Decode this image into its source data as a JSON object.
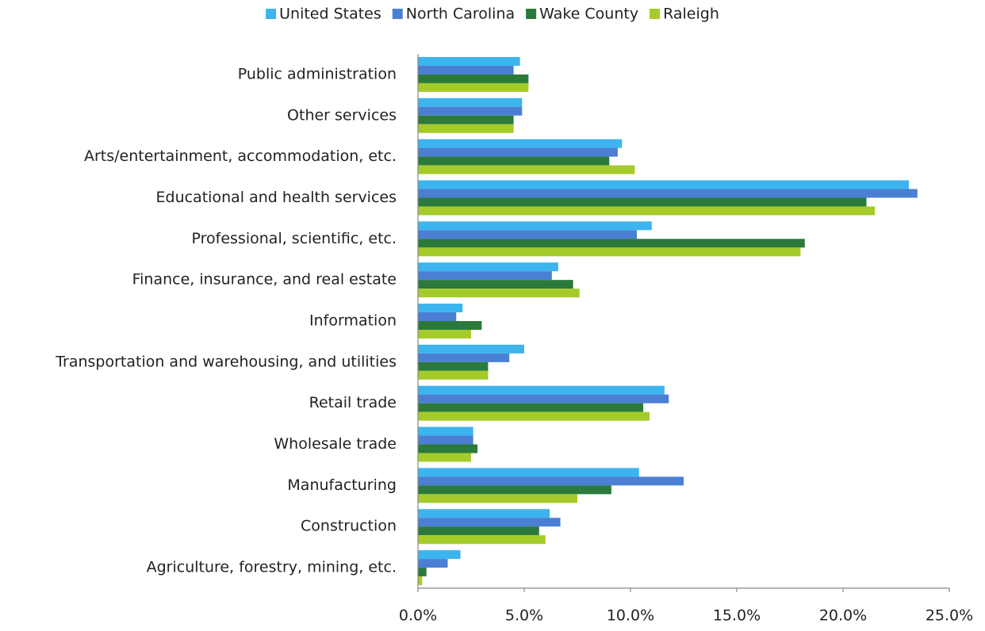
{
  "chart_data": {
    "type": "hbar",
    "categories": [
      "Public administration",
      "Other services",
      "Arts/entertainment, accommodation, etc.",
      "Educational and health services",
      "Professional, scientific, etc.",
      "Finance, insurance, and real estate",
      "Information",
      "Transportation and warehousing, and utilities",
      "Retail trade",
      "Wholesale trade",
      "Manufacturing",
      "Construction",
      "Agriculture, forestry, mining, etc."
    ],
    "series": [
      {
        "name": "United States",
        "color": "#3cb4ee",
        "values": [
          4.8,
          4.9,
          9.6,
          23.1,
          11.0,
          6.6,
          2.1,
          5.0,
          11.6,
          2.6,
          10.4,
          6.2,
          2.0
        ]
      },
      {
        "name": "North Carolina",
        "color": "#4a7fd4",
        "values": [
          4.5,
          4.9,
          9.4,
          23.5,
          10.3,
          6.3,
          1.8,
          4.3,
          11.8,
          2.6,
          12.5,
          6.7,
          1.4
        ]
      },
      {
        "name": "Wake County",
        "color": "#2b7a3b",
        "values": [
          5.2,
          4.5,
          9.0,
          21.1,
          18.2,
          7.3,
          3.0,
          3.3,
          10.6,
          2.8,
          9.1,
          5.7,
          0.4
        ]
      },
      {
        "name": "Raleigh",
        "color": "#a5cb2a",
        "values": [
          5.2,
          4.5,
          10.2,
          21.5,
          18.0,
          7.6,
          2.5,
          3.3,
          10.9,
          2.5,
          7.5,
          6.0,
          0.2
        ]
      }
    ],
    "xlim": [
      0,
      25
    ],
    "xticks": [
      {
        "value": 0,
        "label": "0.0%"
      },
      {
        "value": 5,
        "label": "5.0%"
      },
      {
        "value": 10,
        "label": "10.0%"
      },
      {
        "value": 15,
        "label": "15.0%"
      },
      {
        "value": 20,
        "label": "20.0%"
      },
      {
        "value": 25,
        "label": "25.0%"
      }
    ],
    "legend": "top"
  }
}
